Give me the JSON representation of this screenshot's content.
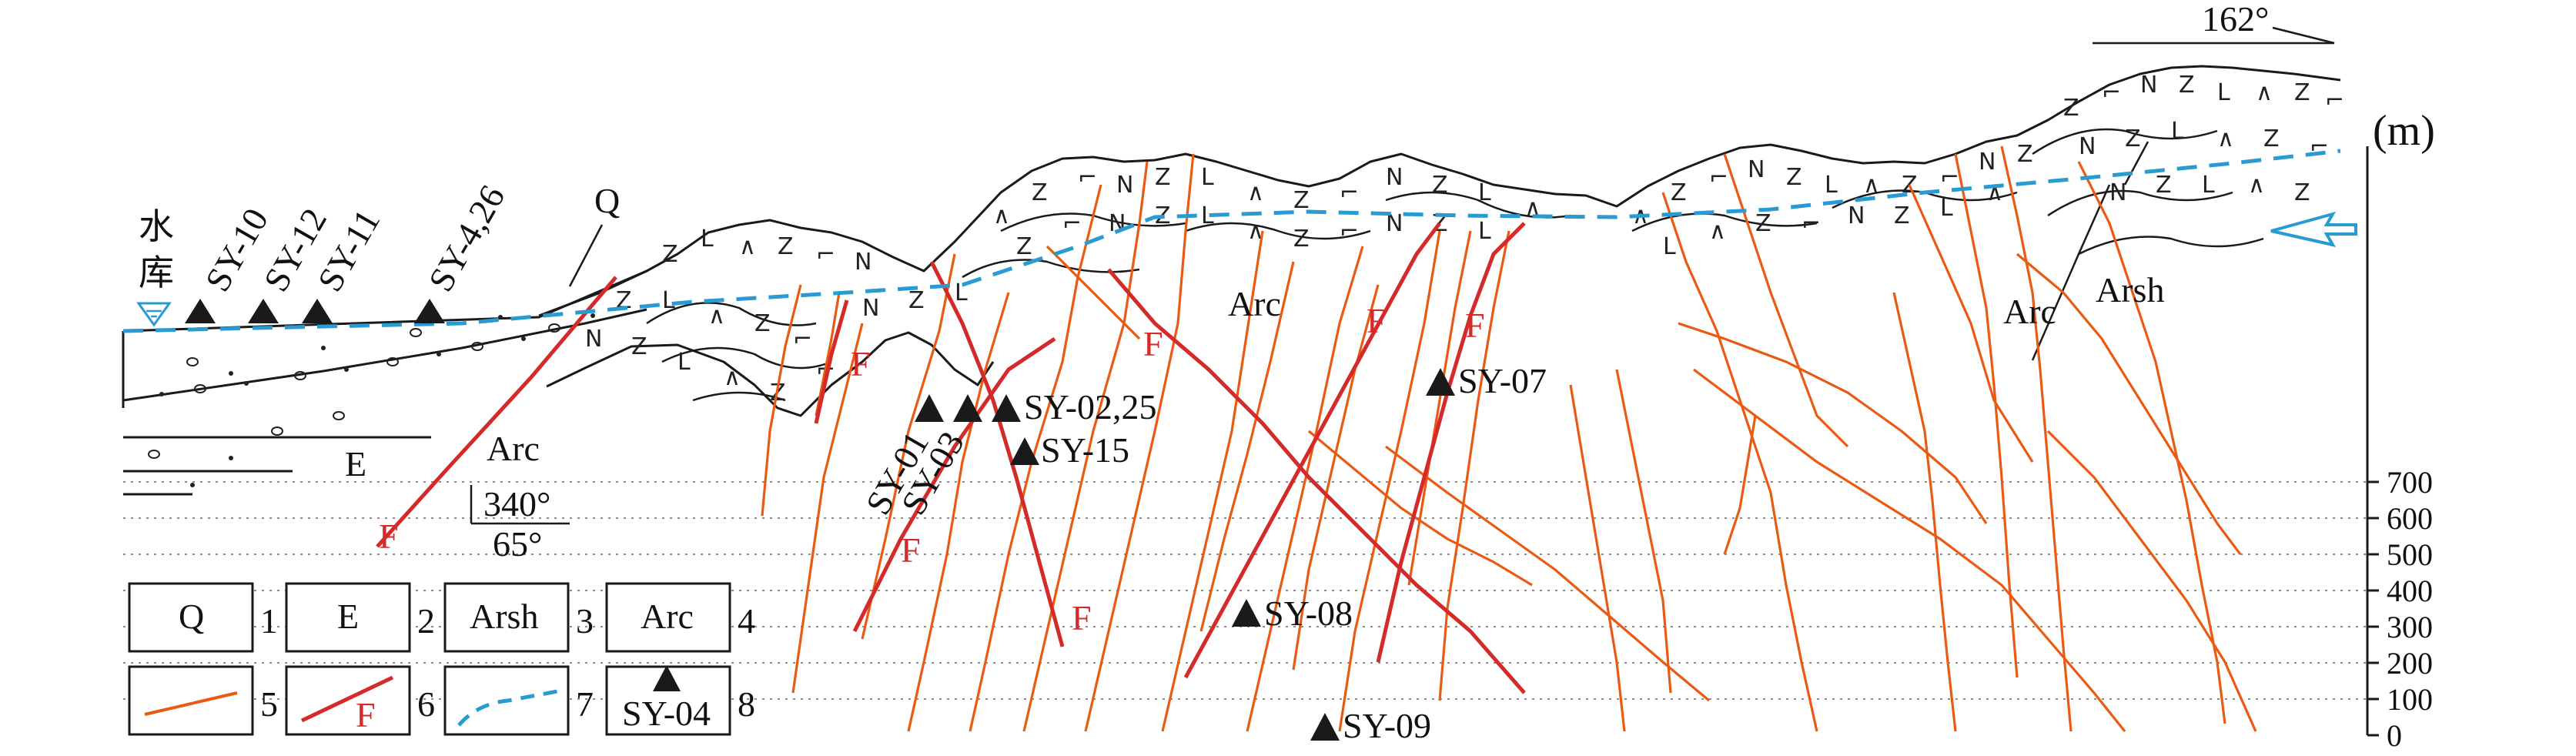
{
  "orientation": {
    "azimuth_label": "162°"
  },
  "axis": {
    "unit_label": "(m)",
    "ticks": [
      "700",
      "600",
      "500",
      "400",
      "300",
      "200",
      "100",
      "0"
    ]
  },
  "labels": {
    "reservoir_line1": "水",
    "reservoir_line2": "库",
    "q": "Q",
    "e": "E",
    "arc_left": "Arc",
    "arc_right": "Arc",
    "arc_center": "Arc",
    "arsh_right": "Arsh",
    "attitude_strike": "340°",
    "attitude_dip": "65°"
  },
  "fault_labels": [
    "F",
    "F",
    "F",
    "F",
    "F",
    "F",
    "F"
  ],
  "samples": [
    {
      "id": "SY-10"
    },
    {
      "id": "SY-12"
    },
    {
      "id": "SY-11"
    },
    {
      "id": "SY-4,26"
    },
    {
      "id": "SY-01"
    },
    {
      "id": "SY-03"
    },
    {
      "id": "SY-02,25"
    },
    {
      "id": "SY-15"
    },
    {
      "id": "SY-07"
    },
    {
      "id": "SY-08"
    },
    {
      "id": "SY-09"
    }
  ],
  "legend": [
    {
      "symbol": "Q",
      "number": "1"
    },
    {
      "symbol": "E",
      "number": "2"
    },
    {
      "symbol": "Arsh",
      "number": "3"
    },
    {
      "symbol": "Arc",
      "number": "4"
    },
    {
      "symbol": "orange-vein-line",
      "number": "5"
    },
    {
      "symbol": "red-fault-line",
      "label": "F",
      "number": "6"
    },
    {
      "symbol": "blue-dashed-water-table",
      "number": "7"
    },
    {
      "symbol": "black-triangle-sample",
      "label": "SY-04",
      "number": "8"
    }
  ],
  "colors": {
    "vein": "#ea5a12",
    "fault": "#d42a2a",
    "water_table": "#2a9bd0",
    "outline": "#1a1a1a"
  }
}
